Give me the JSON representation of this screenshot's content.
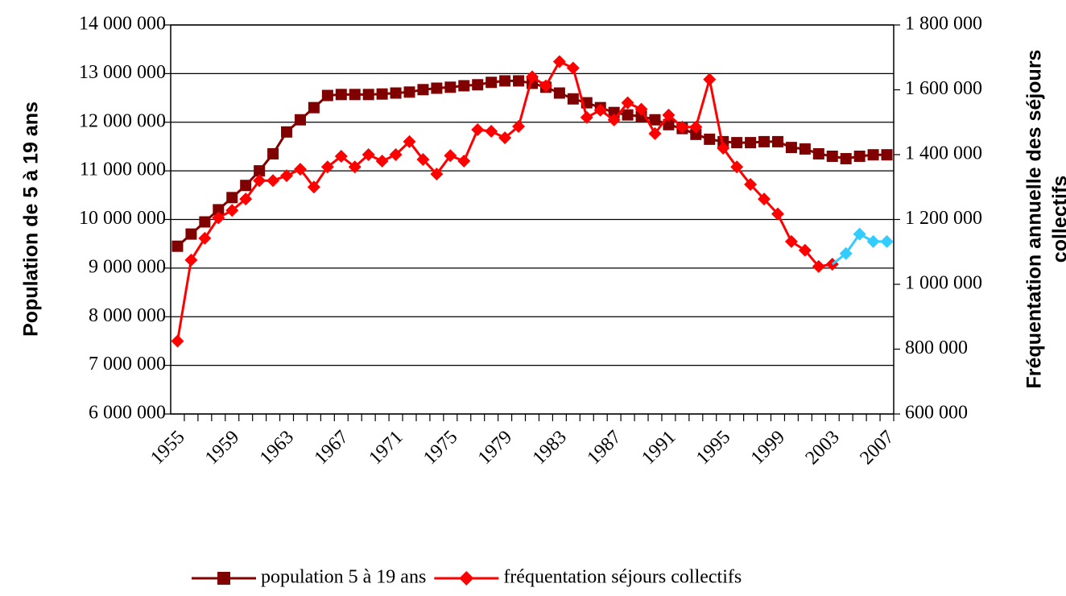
{
  "chart_data": {
    "type": "line",
    "ylabel": "Population de 5 à 19 ans",
    "y2label": [
      "Fréquentation annuelle des séjours",
      "collectifs"
    ],
    "categories": [
      "1955",
      null,
      null,
      null,
      "1959",
      null,
      null,
      null,
      "1963",
      null,
      null,
      null,
      "1967",
      null,
      null,
      null,
      "1971",
      null,
      null,
      null,
      "1975",
      null,
      null,
      null,
      "1979",
      null,
      null,
      null,
      "1983",
      null,
      null,
      null,
      "1987",
      null,
      null,
      null,
      "1991",
      null,
      null,
      null,
      "1995",
      null,
      null,
      null,
      "1999",
      null,
      null,
      null,
      "2003",
      null,
      null,
      null,
      "2007"
    ],
    "series": [
      {
        "name": "population 5 à 19 ans",
        "color": "#800000",
        "marker": "square",
        "axis": "y",
        "values": [
          9450000,
          9700000,
          9950000,
          10200000,
          10450000,
          10700000,
          11000000,
          11350000,
          11800000,
          12050000,
          12300000,
          12550000,
          12570000,
          12570000,
          12570000,
          12580000,
          12600000,
          12620000,
          12670000,
          12700000,
          12720000,
          12750000,
          12770000,
          12820000,
          12850000,
          12850000,
          12800000,
          12720000,
          12600000,
          12480000,
          12400000,
          12300000,
          12200000,
          12150000,
          12120000,
          12050000,
          11950000,
          11870000,
          11750000,
          11650000,
          11600000,
          11580000,
          11580000,
          11600000,
          11600000,
          11480000,
          11450000,
          11350000,
          11300000,
          11250000,
          11300000,
          11330000,
          11330000
        ]
      },
      {
        "name": "fréquentation séjours collectifs",
        "color": "#ff0000",
        "marker": "diamond",
        "axis": "y2",
        "values": [
          825000,
          1075000,
          1142000,
          1205000,
          1228000,
          1263000,
          1320000,
          1320000,
          1335000,
          1355000,
          1300000,
          1362000,
          1395000,
          1362000,
          1400000,
          1380000,
          1400000,
          1440000,
          1385000,
          1340000,
          1397000,
          1380000,
          1477000,
          1472000,
          1452000,
          1487000,
          1640000,
          1612000,
          1687000,
          1667000,
          1515000,
          1537000,
          1507000,
          1560000,
          1540000,
          1465000,
          1522000,
          1485000,
          1485000,
          1632000,
          1420000,
          1362000,
          1308000,
          1263000,
          1217000,
          1132000,
          1105000,
          1055000,
          1062000,
          null,
          null,
          null,
          null
        ]
      },
      {
        "color": "#33ccff",
        "marker": "diamond",
        "axis": "y2",
        "values": [
          null,
          null,
          null,
          null,
          null,
          null,
          null,
          null,
          null,
          null,
          null,
          null,
          null,
          null,
          null,
          null,
          null,
          null,
          null,
          null,
          null,
          null,
          null,
          null,
          null,
          null,
          null,
          null,
          null,
          null,
          null,
          null,
          null,
          null,
          null,
          null,
          null,
          null,
          null,
          null,
          null,
          null,
          null,
          null,
          null,
          null,
          null,
          null,
          null,
          1095000,
          1155000,
          1132000,
          1132000
        ]
      }
    ],
    "ylim": [
      6000000,
      14000000
    ],
    "yticks": [
      {
        "value": 6000000,
        "label": "6 000 000"
      },
      {
        "value": 7000000,
        "label": "7 000 000"
      },
      {
        "value": 8000000,
        "label": "8 000 000"
      },
      {
        "value": 9000000,
        "label": "9 000 000"
      },
      {
        "value": 10000000,
        "label": "10 000 000"
      },
      {
        "value": 11000000,
        "label": "11 000 000"
      },
      {
        "value": 12000000,
        "label": "12 000 000"
      },
      {
        "value": 13000000,
        "label": "13 000 000"
      },
      {
        "value": 14000000,
        "label": "14 000 000"
      }
    ],
    "y2lim": [
      600000,
      1800000
    ],
    "y2ticks": [
      {
        "value": 600000,
        "label": "600 000"
      },
      {
        "value": 800000,
        "label": "800 000"
      },
      {
        "value": 1000000,
        "label": "1 000 000"
      },
      {
        "value": 1200000,
        "label": "1 200 000"
      },
      {
        "value": 1400000,
        "label": "1 400 000"
      },
      {
        "value": 1600000,
        "label": "1 600 000"
      },
      {
        "value": 1800000,
        "label": "1 800 000"
      }
    ],
    "grid": true,
    "legend": "bottom"
  }
}
